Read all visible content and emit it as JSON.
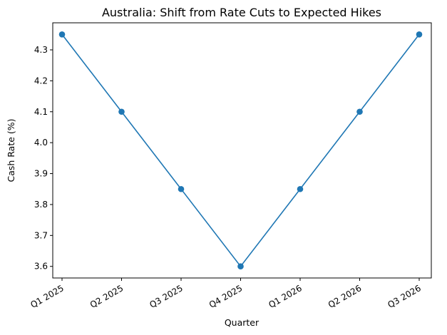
{
  "chart_data": {
    "type": "line",
    "title": "Australia: Shift from Rate Cuts to Expected Hikes",
    "xlabel": "Quarter",
    "ylabel": "Cash Rate (%)",
    "categories": [
      "Q1 2025",
      "Q2 2025",
      "Q3 2025",
      "Q4 2025",
      "Q1 2026",
      "Q2 2026",
      "Q3 2026"
    ],
    "series": [
      {
        "values": [
          4.35,
          4.1,
          3.85,
          3.6,
          3.85,
          4.1,
          4.35
        ],
        "color": "#1f77b4"
      }
    ],
    "yticks": [
      "3.6",
      "3.7",
      "3.8",
      "3.9",
      "4.0",
      "4.1",
      "4.2",
      "4.3"
    ],
    "ylim": [
      3.5625,
      4.3875
    ],
    "grid": false,
    "markers": "circle"
  }
}
